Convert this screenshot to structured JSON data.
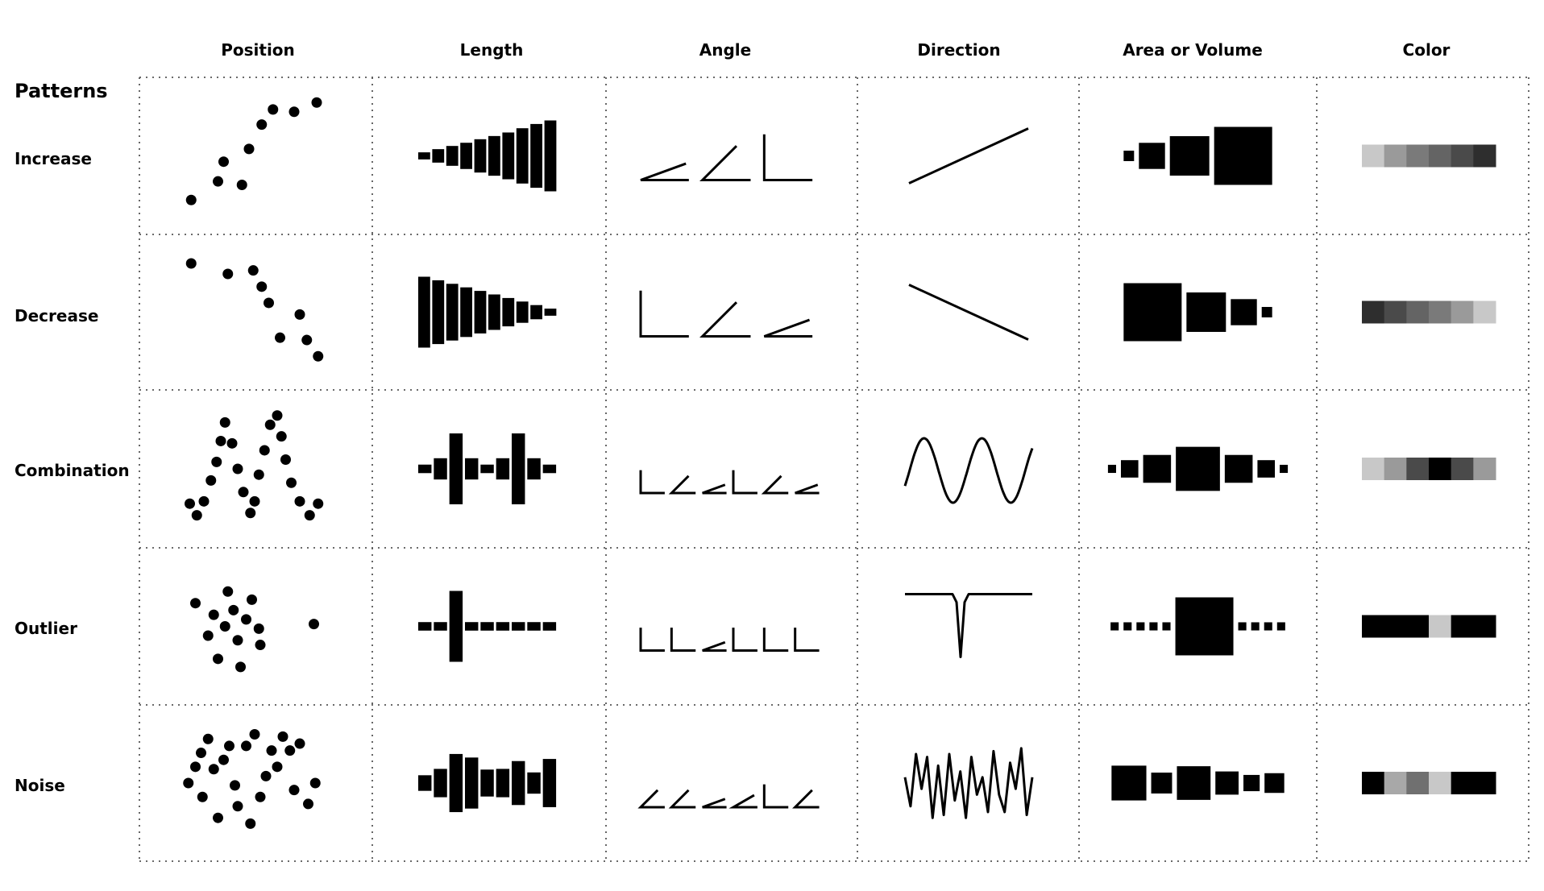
{
  "header": {
    "patterns_label": "Patterns",
    "columns": [
      "Position",
      "Length",
      "Angle",
      "Direction",
      "Area or Volume",
      "Color"
    ]
  },
  "rows": [
    "Increase",
    "Decrease",
    "Combination",
    "Outlier",
    "Noise"
  ],
  "cells": {
    "position": {
      "Increase": [
        [
          0.07,
          0.88
        ],
        [
          0.26,
          0.72
        ],
        [
          0.3,
          0.55
        ],
        [
          0.43,
          0.75
        ],
        [
          0.48,
          0.44
        ],
        [
          0.57,
          0.23
        ],
        [
          0.65,
          0.1
        ],
        [
          0.8,
          0.12
        ],
        [
          0.96,
          0.04
        ]
      ],
      "Decrease": [
        [
          0.07,
          0.08
        ],
        [
          0.33,
          0.17
        ],
        [
          0.51,
          0.14
        ],
        [
          0.57,
          0.28
        ],
        [
          0.62,
          0.42
        ],
        [
          0.7,
          0.72
        ],
        [
          0.84,
          0.52
        ],
        [
          0.89,
          0.74
        ],
        [
          0.97,
          0.88
        ]
      ],
      "Combination": [
        [
          0.06,
          0.8
        ],
        [
          0.11,
          0.9
        ],
        [
          0.16,
          0.78
        ],
        [
          0.21,
          0.6
        ],
        [
          0.25,
          0.44
        ],
        [
          0.28,
          0.26
        ],
        [
          0.31,
          0.1
        ],
        [
          0.36,
          0.28
        ],
        [
          0.4,
          0.5
        ],
        [
          0.44,
          0.7
        ],
        [
          0.49,
          0.88
        ],
        [
          0.52,
          0.78
        ],
        [
          0.55,
          0.55
        ],
        [
          0.59,
          0.34
        ],
        [
          0.63,
          0.12
        ],
        [
          0.68,
          0.04
        ],
        [
          0.71,
          0.22
        ],
        [
          0.74,
          0.42
        ],
        [
          0.78,
          0.62
        ],
        [
          0.84,
          0.78
        ],
        [
          0.91,
          0.9
        ],
        [
          0.97,
          0.8
        ]
      ],
      "Outlier": [
        [
          0.1,
          0.3
        ],
        [
          0.19,
          0.58
        ],
        [
          0.23,
          0.4
        ],
        [
          0.26,
          0.78
        ],
        [
          0.31,
          0.5
        ],
        [
          0.33,
          0.2
        ],
        [
          0.37,
          0.36
        ],
        [
          0.4,
          0.62
        ],
        [
          0.42,
          0.85
        ],
        [
          0.46,
          0.44
        ],
        [
          0.5,
          0.27
        ],
        [
          0.55,
          0.52
        ],
        [
          0.56,
          0.66
        ],
        [
          0.94,
          0.48
        ]
      ],
      "Noise": [
        [
          0.05,
          0.5
        ],
        [
          0.1,
          0.36
        ],
        [
          0.14,
          0.24
        ],
        [
          0.15,
          0.62
        ],
        [
          0.19,
          0.12
        ],
        [
          0.23,
          0.38
        ],
        [
          0.26,
          0.8
        ],
        [
          0.3,
          0.3
        ],
        [
          0.34,
          0.18
        ],
        [
          0.38,
          0.52
        ],
        [
          0.4,
          0.7
        ],
        [
          0.46,
          0.18
        ],
        [
          0.49,
          0.85
        ],
        [
          0.52,
          0.08
        ],
        [
          0.56,
          0.62
        ],
        [
          0.6,
          0.44
        ],
        [
          0.64,
          0.22
        ],
        [
          0.68,
          0.36
        ],
        [
          0.72,
          0.1
        ],
        [
          0.77,
          0.22
        ],
        [
          0.8,
          0.56
        ],
        [
          0.84,
          0.16
        ],
        [
          0.9,
          0.68
        ],
        [
          0.95,
          0.5
        ]
      ]
    },
    "length": {
      "Increase": [
        0.1,
        0.19,
        0.28,
        0.37,
        0.47,
        0.56,
        0.66,
        0.78,
        0.9,
        1.0
      ],
      "Decrease": [
        1.0,
        0.9,
        0.8,
        0.7,
        0.6,
        0.5,
        0.4,
        0.3,
        0.2,
        0.1
      ],
      "Combination": [
        0.12,
        0.3,
        1.0,
        0.3,
        0.12,
        0.3,
        1.0,
        0.3,
        0.12
      ],
      "Outlier": [
        0.12,
        0.12,
        1.0,
        0.12,
        0.12,
        0.12,
        0.12,
        0.12,
        0.12
      ],
      "Noise": [
        0.22,
        0.4,
        0.82,
        0.72,
        0.38,
        0.4,
        0.62,
        0.3,
        0.68
      ]
    },
    "angle_degrees": {
      "Increase": [
        20,
        45,
        90
      ],
      "Decrease": [
        90,
        45,
        20
      ],
      "Combination": [
        90,
        45,
        20,
        90,
        45,
        20
      ],
      "Outlier": [
        90,
        90,
        20,
        90,
        90,
        90
      ],
      "Noise": [
        45,
        45,
        20,
        30,
        90,
        45
      ]
    },
    "direction": {
      "Increase": "rising-line",
      "Decrease": "falling-line",
      "Combination": "sine-wave",
      "Outlier": "spike-down",
      "Noise": "noise-line"
    },
    "area_squares": {
      "Increase": [
        0.18,
        0.45,
        0.68,
        1.0
      ],
      "Decrease": [
        1.0,
        0.68,
        0.45,
        0.18
      ],
      "Combination": [
        0.14,
        0.3,
        0.48,
        0.76,
        0.48,
        0.3,
        0.14
      ],
      "Outlier": [
        0.14,
        0.14,
        0.14,
        0.14,
        0.14,
        1.0,
        0.14,
        0.14,
        0.14,
        0.14
      ],
      "Noise": [
        0.6,
        0.36,
        0.58,
        0.4,
        0.28,
        0.34
      ]
    },
    "color_gray_levels": {
      "Increase": [
        "#c8c8c8",
        "#9a9a9a",
        "#7a7a7a",
        "#646464",
        "#4a4a4a",
        "#2e2e2e"
      ],
      "Decrease": [
        "#2e2e2e",
        "#4a4a4a",
        "#646464",
        "#7a7a7a",
        "#9a9a9a",
        "#c8c8c8"
      ],
      "Combination": [
        "#c8c8c8",
        "#9a9a9a",
        "#4a4a4a",
        "#000000",
        "#4a4a4a",
        "#9a9a9a"
      ],
      "Outlier": [
        "#000000",
        "#000000",
        "#000000",
        "#c8c8c8",
        "#000000",
        "#000000"
      ],
      "Noise": [
        "#000000",
        "#a8a8a8",
        "#707070",
        "#c8c8c8",
        "#000000",
        "#000000"
      ]
    }
  }
}
